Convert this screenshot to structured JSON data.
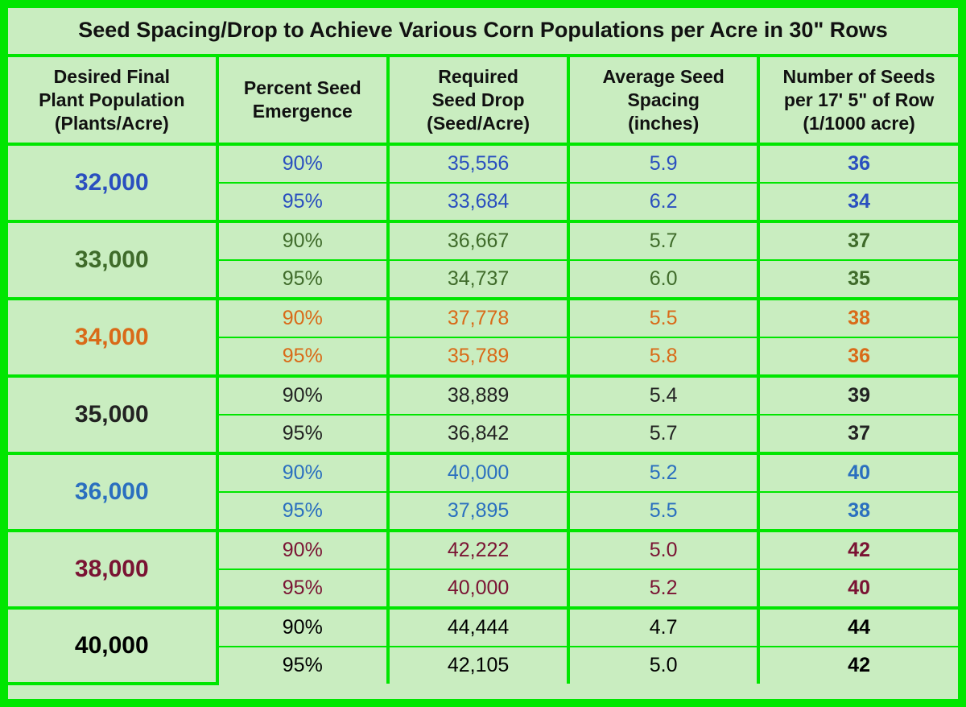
{
  "colors": {
    "border": "#00e600",
    "background": "#c9edc0",
    "header_text": "#111111"
  },
  "title": "Seed Spacing/Drop to Achieve Various Corn Populations per Acre in 30\" Rows",
  "columns": [
    "Desired Final<br>Plant Population<br>(Plants/Acre)",
    "Percent Seed<br>Emergence",
    "Required<br>Seed Drop<br>(Seed/Acre)",
    "Average Seed<br>Spacing<br>(inches)",
    "Number of Seeds<br>per 17' 5\" of Row<br>(1/1000 acre)"
  ],
  "groups": [
    {
      "population": "32,000",
      "color": "#2a4fbf",
      "rows": [
        {
          "emergence": "90%",
          "drop": "35,556",
          "spacing": "5.9",
          "seeds": "36"
        },
        {
          "emergence": "95%",
          "drop": "33,684",
          "spacing": "6.2",
          "seeds": "34"
        }
      ]
    },
    {
      "population": "33,000",
      "color": "#3f6b2a",
      "rows": [
        {
          "emergence": "90%",
          "drop": "36,667",
          "spacing": "5.7",
          "seeds": "37"
        },
        {
          "emergence": "95%",
          "drop": "34,737",
          "spacing": "6.0",
          "seeds": "35"
        }
      ]
    },
    {
      "population": "34,000",
      "color": "#d96a18",
      "rows": [
        {
          "emergence": "90%",
          "drop": "37,778",
          "spacing": "5.5",
          "seeds": "38"
        },
        {
          "emergence": "95%",
          "drop": "35,789",
          "spacing": "5.8",
          "seeds": "36"
        }
      ]
    },
    {
      "population": "35,000",
      "color": "#222222",
      "rows": [
        {
          "emergence": "90%",
          "drop": "38,889",
          "spacing": "5.4",
          "seeds": "39"
        },
        {
          "emergence": "95%",
          "drop": "36,842",
          "spacing": "5.7",
          "seeds": "37"
        }
      ]
    },
    {
      "population": "36,000",
      "color": "#2a6fbf",
      "rows": [
        {
          "emergence": "90%",
          "drop": "40,000",
          "spacing": "5.2",
          "seeds": "40"
        },
        {
          "emergence": "95%",
          "drop": "37,895",
          "spacing": "5.5",
          "seeds": "38"
        }
      ]
    },
    {
      "population": "38,000",
      "color": "#7a1333",
      "rows": [
        {
          "emergence": "90%",
          "drop": "42,222",
          "spacing": "5.0",
          "seeds": "42"
        },
        {
          "emergence": "95%",
          "drop": "40,000",
          "spacing": "5.2",
          "seeds": "40"
        }
      ]
    },
    {
      "population": "40,000",
      "color": "#000000",
      "rows": [
        {
          "emergence": "90%",
          "drop": "44,444",
          "spacing": "4.7",
          "seeds": "44"
        },
        {
          "emergence": "95%",
          "drop": "42,105",
          "spacing": "5.0",
          "seeds": "42"
        }
      ]
    }
  ]
}
